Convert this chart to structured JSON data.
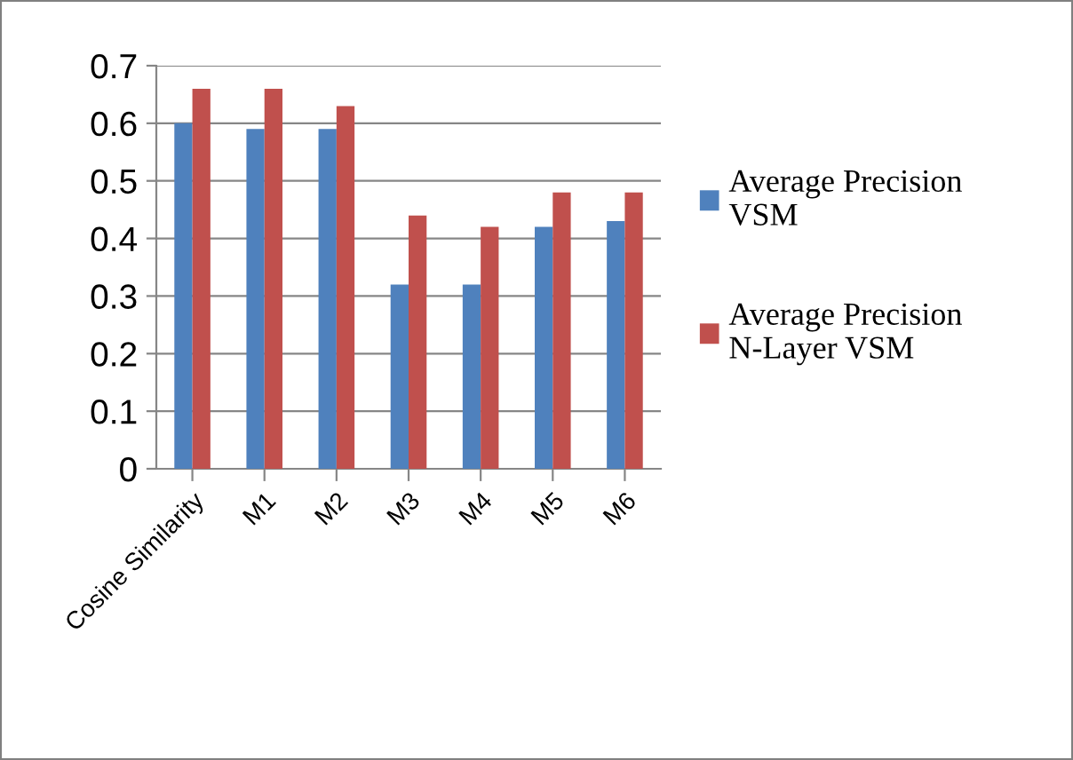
{
  "chart_data": {
    "type": "bar",
    "categories": [
      "Cosine Similarity",
      "M1",
      "M2",
      "M3",
      "M4",
      "M5",
      "M6"
    ],
    "series": [
      {
        "name": "Average Precision\nVSM",
        "color": "#4f81bd",
        "values": [
          0.6,
          0.59,
          0.59,
          0.32,
          0.32,
          0.42,
          0.43
        ]
      },
      {
        "name": "Average Precision\nN-Layer VSM",
        "color": "#c0504d",
        "values": [
          0.66,
          0.66,
          0.63,
          0.44,
          0.42,
          0.48,
          0.48
        ]
      }
    ],
    "ylim": [
      0,
      0.7
    ],
    "yticks": [
      0,
      0.1,
      0.2,
      0.3,
      0.4,
      0.5,
      0.6,
      0.7
    ],
    "grid": "y",
    "legend": "right"
  }
}
